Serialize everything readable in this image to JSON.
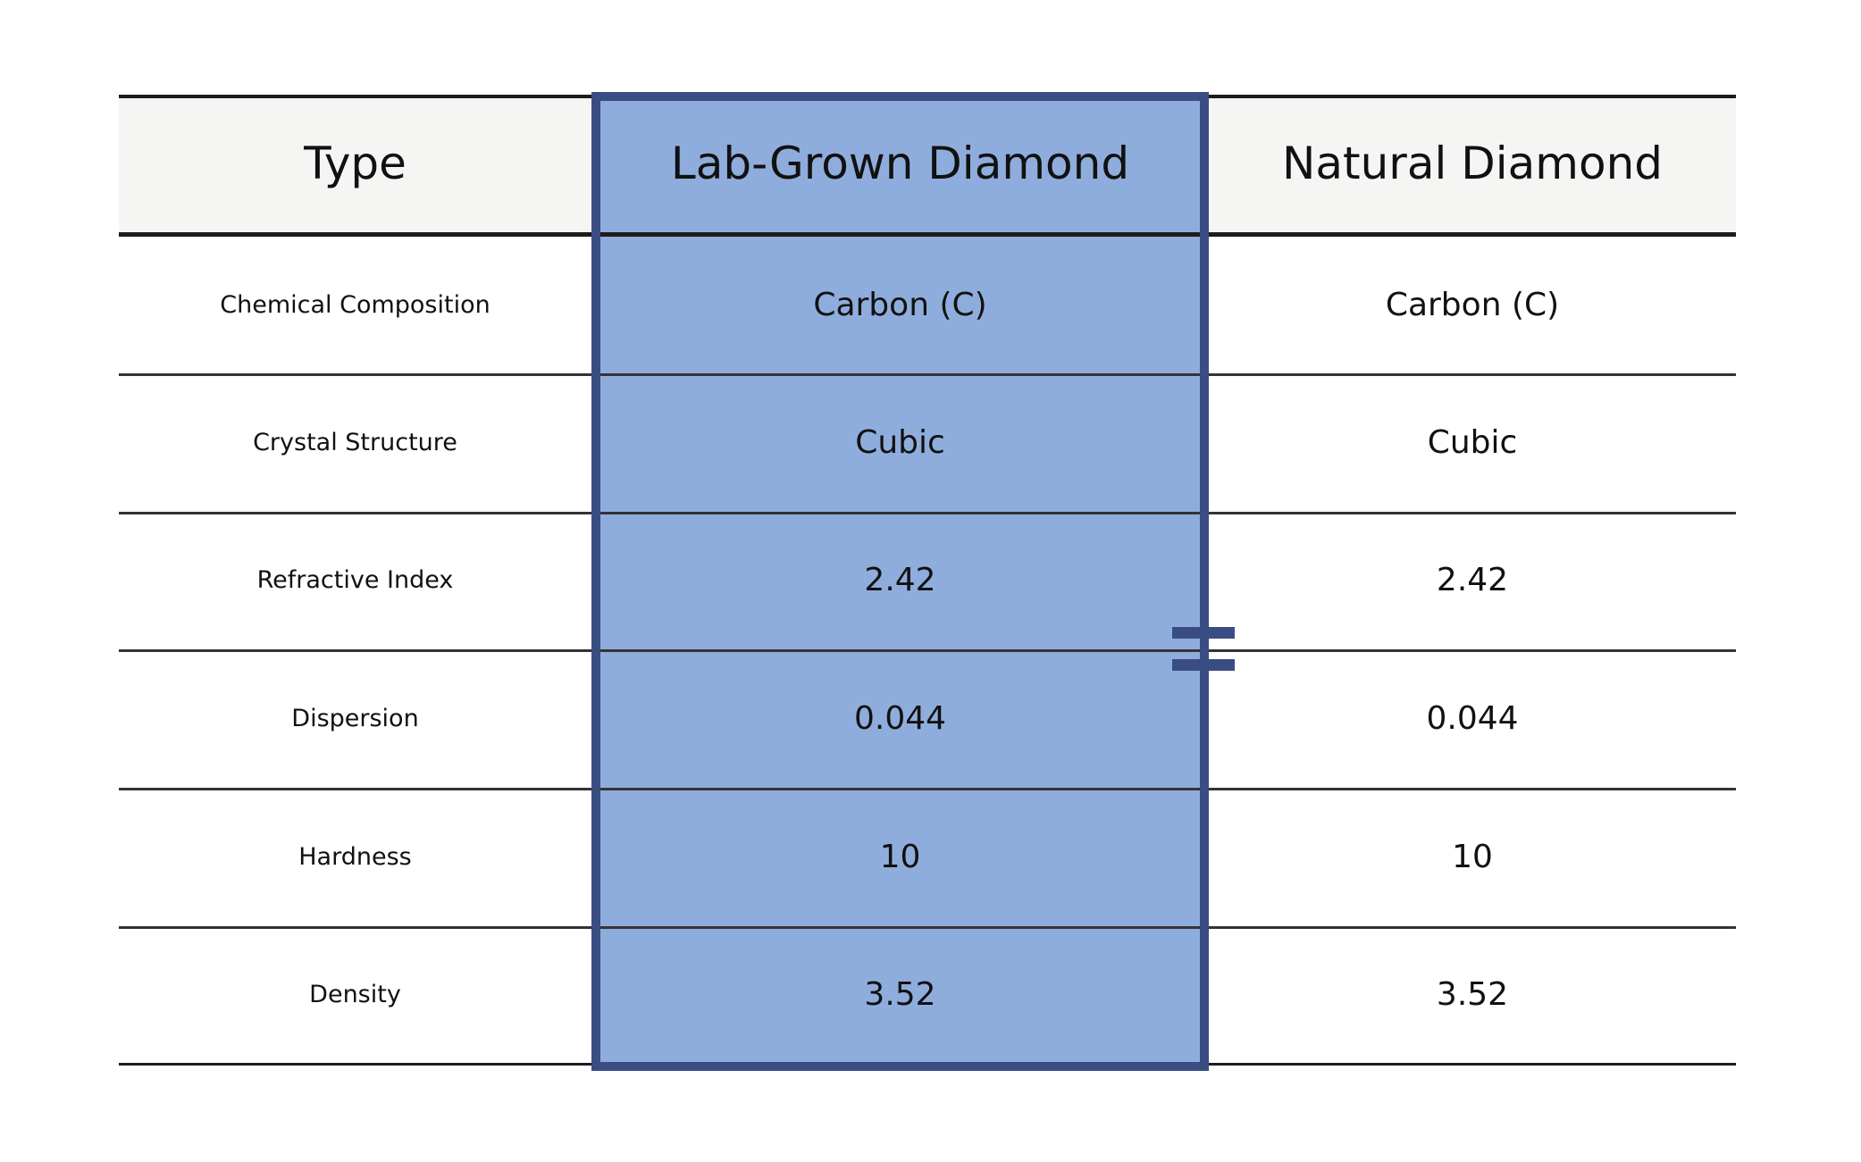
{
  "table": {
    "header": [
      "Type",
      "Lab-Grown Diamond",
      "Natural Diamond"
    ],
    "rows": [
      {
        "label": "Chemical Composition",
        "lab": "Carbon (C)",
        "natural": "Carbon (C)"
      },
      {
        "label": "Crystal Structure",
        "lab": "Cubic",
        "natural": "Cubic"
      },
      {
        "label": "Refractive Index",
        "lab": "2.42",
        "natural": "2.42"
      },
      {
        "label": "Dispersion",
        "lab": "0.044",
        "natural": "0.044"
      },
      {
        "label": "Hardness",
        "lab": "10",
        "natural": "10"
      },
      {
        "label": "Density",
        "lab": "3.52",
        "natural": "3.52"
      }
    ]
  },
  "highlight": {
    "column": "Lab-Grown Diamond",
    "fill": "#8FADDC",
    "border": "#3A4D82"
  },
  "colors": {
    "background": "#ffffff",
    "header_bg": "#f5f5f4",
    "line_heavy": "#1c1c1c",
    "line_light": "#333333",
    "text": "#111111"
  },
  "chart_data": {
    "type": "table",
    "title": "",
    "columns": [
      "Type",
      "Lab-Grown Diamond",
      "Natural Diamond"
    ],
    "rows": [
      [
        "Chemical Composition",
        "Carbon (C)",
        "Carbon (C)"
      ],
      [
        "Crystal Structure",
        "Cubic",
        "Cubic"
      ],
      [
        "Refractive Index",
        "2.42",
        "2.42"
      ],
      [
        "Dispersion",
        "0.044",
        "0.044"
      ],
      [
        "Hardness",
        "10",
        "10"
      ],
      [
        "Density",
        "3.52",
        "3.52"
      ]
    ],
    "highlighted_column": "Lab-Grown Diamond",
    "legend_position": "none",
    "grid": "horizontal-rules"
  }
}
